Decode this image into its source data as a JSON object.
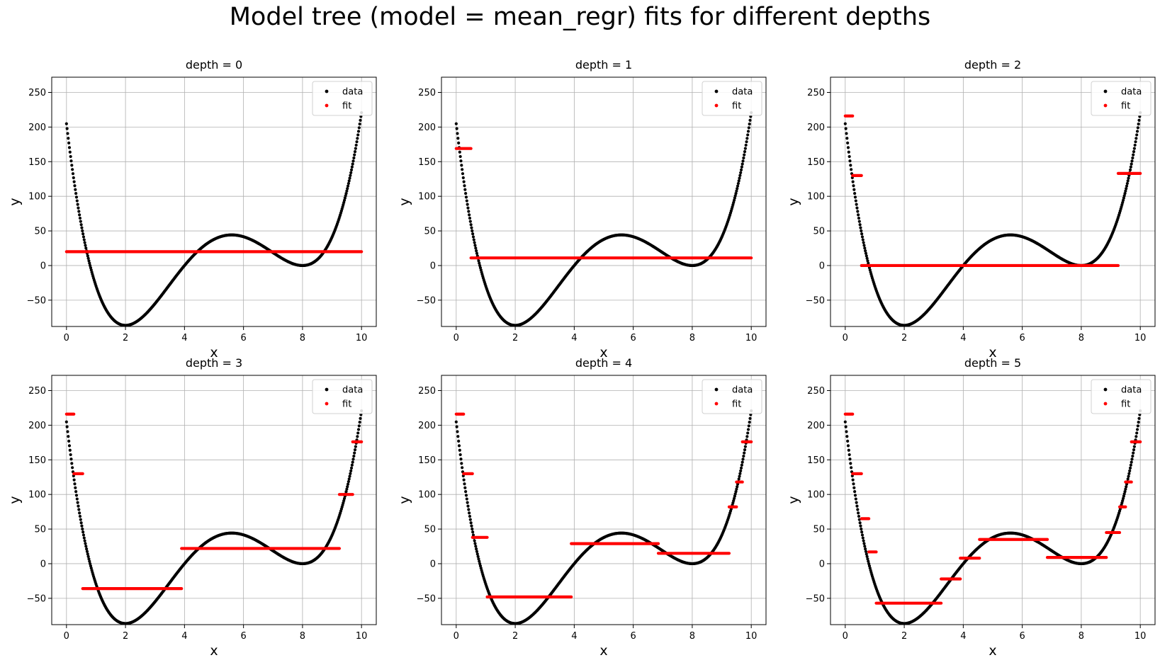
{
  "figure": {
    "title": "Model tree (model = mean_regr) fits for different depths"
  },
  "colors": {
    "data": "#000000",
    "fit": "#ff0000",
    "grid": "#b0b0b0"
  },
  "chart_data": [
    {
      "type": "scatter",
      "title": "depth = 0",
      "xlabel": "x",
      "ylabel": "y",
      "xlim": [
        -0.5,
        10.5
      ],
      "ylim": [
        -88,
        272
      ],
      "xticks": [
        0,
        2,
        4,
        6,
        8,
        10
      ],
      "yticks": [
        -50,
        0,
        50,
        100,
        150,
        200,
        250
      ],
      "grid": true,
      "legend": "top-right",
      "series": [
        {
          "name": "data",
          "function": "y = (x - 0.8)(x - 4)(x - 8)^2"
        },
        {
          "name": "fit",
          "segments": [
            [
              0,
              10,
              20
            ]
          ]
        }
      ]
    },
    {
      "type": "scatter",
      "title": "depth = 1",
      "xlabel": "x",
      "ylabel": "y",
      "xlim": [
        -0.5,
        10.5
      ],
      "ylim": [
        -88,
        272
      ],
      "xticks": [
        0,
        2,
        4,
        6,
        8,
        10
      ],
      "yticks": [
        -50,
        0,
        50,
        100,
        150,
        200,
        250
      ],
      "grid": true,
      "legend": "top-right",
      "series": [
        {
          "name": "data",
          "function": "y = (x - 0.8)(x - 4)(x - 8)^2"
        },
        {
          "name": "fit",
          "segments": [
            [
              0,
              0.5,
              169
            ],
            [
              0.5,
              10,
              11
            ]
          ]
        }
      ]
    },
    {
      "type": "scatter",
      "title": "depth = 2",
      "xlabel": "x",
      "ylabel": "y",
      "xlim": [
        -0.5,
        10.5
      ],
      "ylim": [
        -88,
        272
      ],
      "xticks": [
        0,
        2,
        4,
        6,
        8,
        10
      ],
      "yticks": [
        -50,
        0,
        50,
        100,
        150,
        200,
        250
      ],
      "grid": true,
      "legend": "top-right",
      "series": [
        {
          "name": "data",
          "function": "y = (x - 0.8)(x - 4)(x - 8)^2"
        },
        {
          "name": "fit",
          "segments": [
            [
              0,
              0.25,
              216
            ],
            [
              0.25,
              0.55,
              130
            ],
            [
              0.55,
              9.25,
              0
            ],
            [
              9.25,
              10,
              133
            ]
          ]
        }
      ]
    },
    {
      "type": "scatter",
      "title": "depth = 3",
      "xlabel": "x",
      "ylabel": "y",
      "xlim": [
        -0.5,
        10.5
      ],
      "ylim": [
        -88,
        272
      ],
      "xticks": [
        0,
        2,
        4,
        6,
        8,
        10
      ],
      "yticks": [
        -50,
        0,
        50,
        100,
        150,
        200,
        250
      ],
      "grid": true,
      "legend": "top-right",
      "series": [
        {
          "name": "data",
          "function": "y = (x - 0.8)(x - 4)(x - 8)^2"
        },
        {
          "name": "fit",
          "segments": [
            [
              0,
              0.25,
              216
            ],
            [
              0.25,
              0.55,
              130
            ],
            [
              0.55,
              3.9,
              -36
            ],
            [
              3.9,
              9.25,
              22
            ],
            [
              9.25,
              9.7,
              100
            ],
            [
              9.7,
              10,
              176
            ]
          ]
        }
      ]
    },
    {
      "type": "scatter",
      "title": "depth = 4",
      "xlabel": "x",
      "ylabel": "y",
      "xlim": [
        -0.5,
        10.5
      ],
      "ylim": [
        -88,
        272
      ],
      "xticks": [
        0,
        2,
        4,
        6,
        8,
        10
      ],
      "yticks": [
        -50,
        0,
        50,
        100,
        150,
        200,
        250
      ],
      "grid": true,
      "legend": "top-right",
      "series": [
        {
          "name": "data",
          "function": "y = (x - 0.8)(x - 4)(x - 8)^2"
        },
        {
          "name": "fit",
          "segments": [
            [
              0,
              0.25,
              216
            ],
            [
              0.25,
              0.55,
              130
            ],
            [
              0.55,
              1.05,
              38
            ],
            [
              1.05,
              3.9,
              -48
            ],
            [
              3.9,
              6.85,
              29
            ],
            [
              6.85,
              9.25,
              15
            ],
            [
              9.25,
              9.5,
              82
            ],
            [
              9.5,
              9.7,
              118
            ],
            [
              9.7,
              10,
              176
            ]
          ]
        }
      ]
    },
    {
      "type": "scatter",
      "title": "depth = 5",
      "xlabel": "x",
      "ylabel": "y",
      "xlim": [
        -0.5,
        10.5
      ],
      "ylim": [
        -88,
        272
      ],
      "xticks": [
        0,
        2,
        4,
        6,
        8,
        10
      ],
      "yticks": [
        -50,
        0,
        50,
        100,
        150,
        200,
        250
      ],
      "grid": true,
      "legend": "top-right",
      "series": [
        {
          "name": "data",
          "function": "y = (x - 0.8)(x - 4)(x - 8)^2"
        },
        {
          "name": "fit",
          "segments": [
            [
              0,
              0.25,
              216
            ],
            [
              0.25,
              0.55,
              130
            ],
            [
              0.55,
              0.8,
              65
            ],
            [
              0.8,
              1.05,
              17
            ],
            [
              1.05,
              3.25,
              -57
            ],
            [
              3.25,
              3.9,
              -22
            ],
            [
              3.9,
              4.55,
              8
            ],
            [
              4.55,
              6.85,
              35
            ],
            [
              6.85,
              8.85,
              9
            ],
            [
              8.85,
              9.3,
              45
            ],
            [
              9.3,
              9.5,
              82
            ],
            [
              9.5,
              9.7,
              118
            ],
            [
              9.7,
              10,
              176
            ]
          ]
        }
      ]
    }
  ]
}
